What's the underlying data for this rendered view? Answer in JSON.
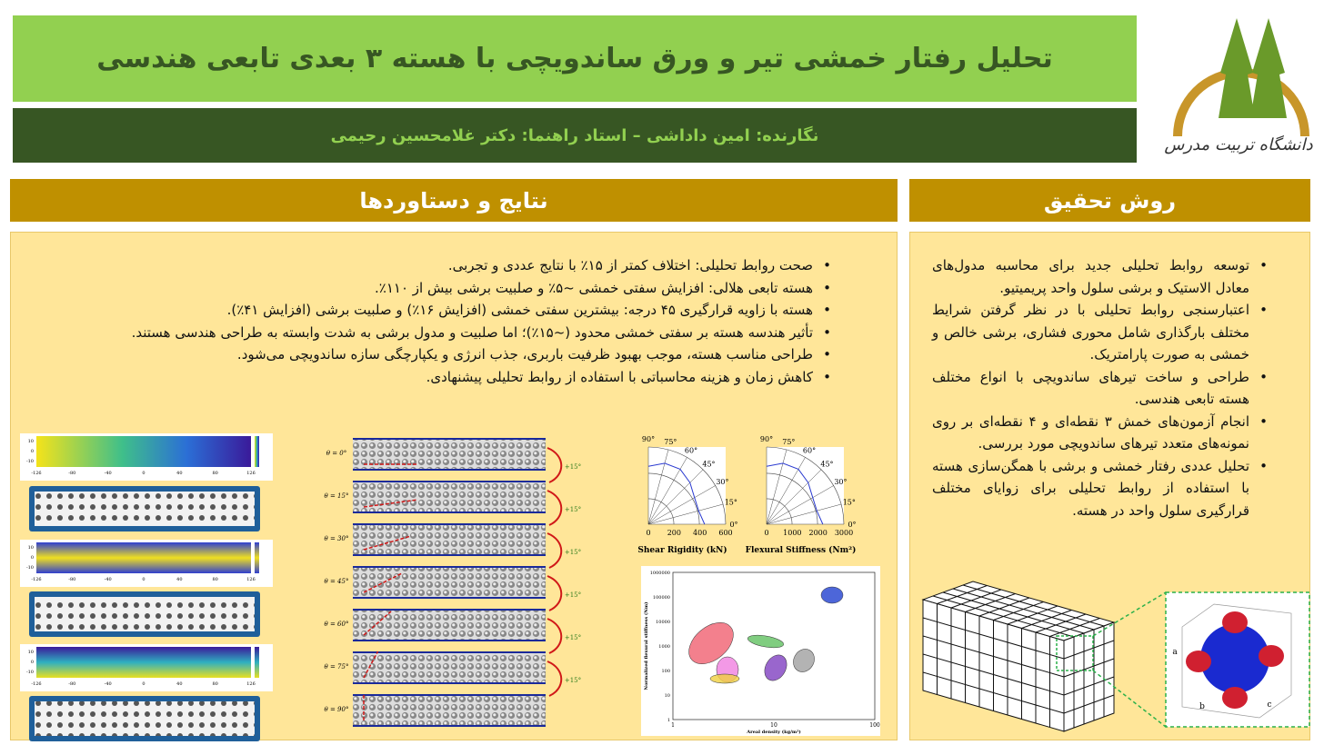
{
  "header": {
    "title": "تحلیل رفتار خمشی تیر و ورق ساندویچی با هسته ۳ بعدی تابعی هندسی",
    "authors": "نگارنده: امین داداشی – استاد راهنما: دکتر غلامحسین رحیمی"
  },
  "logo": {
    "text": "دانشگاه تربیت مدرس"
  },
  "results": {
    "heading": "نتایج و دستاوردها",
    "bullets": [
      "صحت روابط تحلیلی: اختلاف کمتر از ۱۵٪ با نتایج عددی و تجربی.",
      "هسته تابعی هلالی: افزایش سفتی خمشی ~۵٪ و صلبیت برشی بیش از ۱۱۰٪.",
      "هسته با زاویه قرارگیری ۴۵ درجه: بیشترین سفتی خمشی (افزایش ۱۶٪) و صلبیت برشی (افزایش ۴۱٪).",
      "تأثیر هندسه هسته بر سفتی خمشی محدود (~۱۵٪)؛ اما صلبیت و مدول برشی به شدت وابسته به طراحی هندسی هستند.",
      "طراحی مناسب هسته، موجب بهبود ظرفیت باربری، جذب انرژی و یکپارچگی سازه ساندویچی می‌شود.",
      "کاهش زمان و هزینه محاسباتی با استفاده از روابط تحلیلی پیشنهادی."
    ]
  },
  "method": {
    "heading": "روش تحقیق",
    "bullets": [
      "توسعه روابط تحلیلی جدید برای محاسبه مدول‌های معادل الاستیک و برشی سلول واحد پریمیتیو.",
      "اعتبارسنجی روابط تحلیلی با در نظر گرفتن شرایط مختلف بارگذاری شامل محوری فشاری، برشی خالص و خمشی به صورت پارامتریک.",
      "طراحی و ساخت تیرهای ساندویچی با انواع مختلف هسته تابعی هندسی.",
      "انجام آزمون‌های خمش ۳ نقطه‌ای و ۴ نقطه‌ای بر روی نمونه‌های متعدد تیرهای ساندویچی مورد بررسی.",
      "تحلیل عددی رفتار خمشی و برشی با همگن‌سازی هسته با استفاده از روابط تحلیلی برای زوایای مختلف قرارگیری سلول واحد در هسته."
    ]
  },
  "figures": {
    "maps": {
      "xticks": [
        "-126",
        "-80",
        "-40",
        "0",
        "40",
        "80",
        "126"
      ],
      "yticks": [
        "10",
        "0",
        "-10"
      ]
    },
    "orientation": {
      "angles": [
        "θ = 0°",
        "θ = 15°",
        "θ = 30°",
        "θ = 45°",
        "θ = 60°",
        "θ = 75°",
        "θ = 90°"
      ],
      "increment": "+15°"
    },
    "polar": [
      {
        "angles": [
          "90°",
          "75°",
          "60°",
          "45°",
          "30°",
          "15°",
          "0°"
        ],
        "rticks": [
          "0",
          "200",
          "400",
          "600"
        ],
        "xlabel": "Shear Rigidity (kN)"
      },
      {
        "angles": [
          "90°",
          "75°",
          "60°",
          "45°",
          "30°",
          "15°",
          "0°"
        ],
        "rticks": [
          "0",
          "1000",
          "2000",
          "3000"
        ],
        "xlabel": "Flexural Stiffness (Nm²)"
      }
    ],
    "ashby": {
      "ylabel": "Normalized flexural stiffness (Nm)",
      "xlabel": "Areal density (kg/m²)",
      "yticks": [
        "1",
        "10",
        "100",
        "1000",
        "10000",
        "100000",
        "1000000"
      ],
      "xticks": [
        "1",
        "10",
        "100"
      ]
    },
    "cube": {
      "labels": [
        "a",
        "b",
        "c"
      ]
    }
  }
}
